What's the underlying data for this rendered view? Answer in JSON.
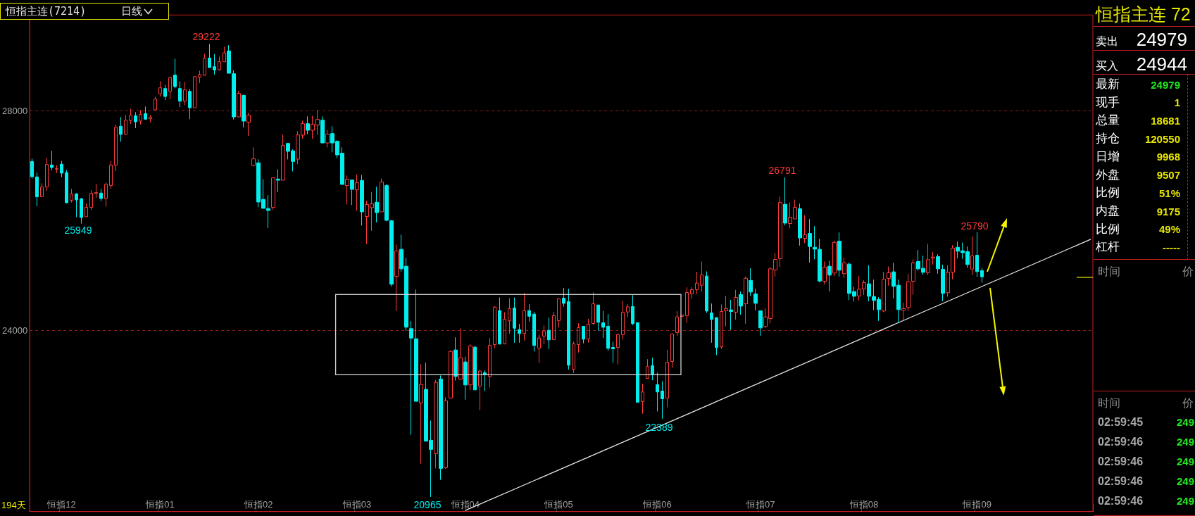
{
  "chart_data": [
    {
      "type": "candlestick",
      "title": "恒指主连(7214)",
      "subtitle": "日线",
      "categories": [
        null,
        null,
        null,
        null,
        null,
        null,
        "恒指12",
        null,
        null,
        null,
        null,
        null,
        null,
        null,
        null,
        null,
        null,
        null,
        null,
        null,
        null,
        null,
        null,
        null,
        null,
        null,
        "恒指01",
        null,
        null,
        null,
        null,
        null,
        null,
        null,
        null,
        null,
        null,
        null,
        null,
        null,
        null,
        null,
        null,
        null,
        null,
        null,
        "恒指02",
        null,
        null,
        null,
        null,
        null,
        null,
        null,
        null,
        null,
        null,
        null,
        null,
        null,
        null,
        null,
        null,
        null,
        null,
        null,
        "恒指03",
        null,
        null,
        null,
        null,
        null,
        null,
        null,
        null,
        null,
        null,
        null,
        null,
        null,
        null,
        null,
        null,
        null,
        null,
        null,
        null,
        null,
        "恒指04",
        null,
        null,
        null,
        null,
        null,
        null,
        null,
        null,
        null,
        null,
        null,
        null,
        null,
        null,
        null,
        null,
        null,
        null,
        "恒指05",
        null,
        null,
        null,
        null,
        null,
        null,
        null,
        null,
        null,
        null,
        null,
        null,
        null,
        null,
        null,
        null,
        null,
        null,
        null,
        "恒指06",
        null,
        null,
        null,
        null,
        null,
        null,
        null,
        null,
        null,
        null,
        null,
        null,
        null,
        null,
        null,
        null,
        null,
        null,
        null,
        null,
        "恒指07",
        null,
        null,
        null,
        null,
        null,
        null,
        null,
        null,
        null,
        null,
        null,
        null,
        null,
        null,
        null,
        null,
        null,
        null,
        null,
        null,
        "恒指08",
        null,
        null,
        null,
        null,
        null,
        null,
        null,
        null,
        null,
        null,
        null,
        null,
        null,
        null,
        null,
        null,
        null,
        null,
        null,
        null,
        null,
        null,
        "恒指09",
        null,
        null,
        null,
        null,
        null,
        null,
        null,
        null,
        null,
        null,
        null,
        null,
        null,
        null,
        null,
        null,
        null,
        null,
        null,
        null,
        null,
        null,
        null
      ],
      "ohlc": [
        [
          27081,
          27133,
          26770,
          26804
        ],
        [
          26799,
          26876,
          26265,
          26436
        ],
        [
          26436,
          26684,
          26436,
          26616
        ],
        [
          26616,
          27146,
          26547,
          27026
        ],
        [
          27017,
          27274,
          26919,
          26970
        ],
        [
          26940,
          27013,
          26868,
          26949
        ],
        [
          27030,
          27090,
          26795,
          26868
        ],
        [
          26876,
          26923,
          26317,
          26329
        ],
        [
          26372,
          26581,
          26334,
          26488
        ],
        [
          26488,
          26505,
          26064,
          26381
        ],
        [
          26402,
          26415,
          25949,
          26060
        ],
        [
          26073,
          26317,
          26073,
          26244
        ],
        [
          26244,
          26556,
          26193,
          26500
        ],
        [
          26496,
          26671,
          26419,
          26513
        ],
        [
          26505,
          26581,
          26355,
          26406
        ],
        [
          26406,
          26697,
          26257,
          26663
        ],
        [
          26641,
          27090,
          26586,
          27013
        ],
        [
          27013,
          27752,
          26906,
          27705
        ],
        [
          27722,
          27889,
          27440,
          27573
        ],
        [
          27573,
          27927,
          27560,
          27833
        ],
        [
          27829,
          28043,
          27765,
          27923
        ],
        [
          27914,
          27979,
          27688,
          27804
        ],
        [
          27816,
          28017,
          27752,
          27936
        ],
        [
          27953,
          28081,
          27838,
          27851
        ],
        [
          27859,
          27923,
          27795,
          27889
        ],
        [
          28022,
          28261,
          28022,
          28218
        ],
        [
          28316,
          28543,
          28265,
          28423
        ],
        [
          28410,
          28479,
          28201,
          28265
        ],
        [
          28359,
          28628,
          28214,
          28607
        ],
        [
          28654,
          28953,
          28415,
          28445
        ],
        [
          28410,
          28539,
          28073,
          28180
        ],
        [
          28180,
          28530,
          28103,
          28385
        ],
        [
          28359,
          28402,
          27851,
          28060
        ],
        [
          28060,
          28628,
          28060,
          28628
        ],
        [
          28615,
          28735,
          28509,
          28662
        ],
        [
          28650,
          29043,
          28650,
          28962
        ],
        [
          28966,
          29222,
          28791,
          28791
        ],
        [
          28808,
          29038,
          28663,
          28748
        ],
        [
          28752,
          28992,
          28735,
          28898
        ],
        [
          28898,
          29171,
          28898,
          29060
        ],
        [
          29094,
          29200,
          28688,
          28688
        ],
        [
          28680,
          28744,
          27846,
          27893
        ],
        [
          27893,
          28360,
          27893,
          28320
        ],
        [
          28286,
          28299,
          27700,
          27816
        ],
        [
          27795,
          27965,
          27547,
          27923
        ],
        [
          27008,
          27337,
          26991,
          27128
        ],
        [
          27055,
          27119,
          26248,
          26342
        ],
        [
          26389,
          26760,
          26226,
          26226
        ],
        [
          26222,
          26466,
          25867,
          26188
        ],
        [
          26243,
          26782,
          26201,
          26782
        ],
        [
          26760,
          26940,
          26521,
          26739
        ],
        [
          26739,
          27568,
          26739,
          27371
        ],
        [
          27410,
          27410,
          27119,
          27265
        ],
        [
          27273,
          27303,
          26901,
          27081
        ],
        [
          27124,
          27632,
          27030,
          27564
        ],
        [
          27560,
          27824,
          27495,
          27769
        ],
        [
          27769,
          27901,
          27581,
          27649
        ],
        [
          27649,
          27914,
          27495,
          27756
        ],
        [
          27743,
          28017,
          27568,
          27846
        ],
        [
          27833,
          27901,
          27418,
          27418
        ],
        [
          27418,
          27654,
          27337,
          27577
        ],
        [
          27589,
          27722,
          27248,
          27418
        ],
        [
          27448,
          27465,
          27145,
          27201
        ],
        [
          27231,
          27337,
          26662,
          26662
        ],
        [
          26641,
          26825,
          26299,
          26756
        ],
        [
          26743,
          26743,
          26286,
          26572
        ],
        [
          26564,
          26846,
          26184,
          26692
        ],
        [
          26735,
          26837,
          25914,
          26162
        ],
        [
          26077,
          26363,
          25573,
          26295
        ],
        [
          26239,
          26525,
          25816,
          26307
        ],
        [
          26337,
          26619,
          25970,
          26149
        ],
        [
          26162,
          26769,
          26162,
          26705
        ],
        [
          26641,
          26666,
          25991,
          26008
        ],
        [
          26000,
          26017,
          24803,
          24842
        ],
        [
          24987,
          25564,
          24355,
          25448
        ],
        [
          25479,
          25748,
          25068,
          25124
        ],
        [
          25171,
          25325,
          23996,
          24060
        ],
        [
          24034,
          24171,
          22098,
          23863
        ],
        [
          23850,
          24748,
          22709,
          22709
        ],
        [
          22679,
          23389,
          21573,
          23017
        ],
        [
          22927,
          23414,
          21983,
          21983
        ],
        [
          22000,
          22359,
          20965,
          21833
        ],
        [
          21756,
          23102,
          21487,
          23055
        ],
        [
          23115,
          23179,
          21278,
          21487
        ],
        [
          21500,
          22782,
          21479,
          22718
        ],
        [
          22769,
          23636,
          22769,
          23619
        ],
        [
          23645,
          23876,
          23089,
          23162
        ],
        [
          23111,
          24038,
          23111,
          23504
        ],
        [
          23427,
          23521,
          22739,
          23008
        ],
        [
          23008,
          23747,
          22910,
          23718
        ],
        [
          23696,
          23722,
          22910,
          22919
        ],
        [
          22987,
          23286,
          22547,
          23260
        ],
        [
          23230,
          23273,
          22897,
          23196
        ],
        [
          23162,
          23863,
          22961,
          23730
        ],
        [
          23743,
          24440,
          23679,
          24427
        ],
        [
          24363,
          24602,
          23752,
          23752
        ],
        [
          23760,
          24333,
          23747,
          24205
        ],
        [
          24175,
          24589,
          23944,
          24397
        ],
        [
          24410,
          24602,
          23777,
          24042
        ],
        [
          24017,
          24119,
          23777,
          23944
        ],
        [
          23944,
          24683,
          23816,
          24359
        ],
        [
          24363,
          24478,
          24162,
          24260
        ],
        [
          24299,
          24341,
          23615,
          23726
        ],
        [
          23679,
          23927,
          23406,
          23863
        ],
        [
          23897,
          24094,
          23752,
          23991
        ],
        [
          24004,
          24235,
          23662,
          23829
        ],
        [
          23833,
          24341,
          23833,
          24269
        ],
        [
          24179,
          24589,
          24051,
          24576
        ],
        [
          24589,
          24773,
          24436,
          24495
        ],
        [
          24525,
          24760,
          23290,
          23367
        ],
        [
          23290,
          23799,
          23226,
          23756
        ],
        [
          23743,
          24132,
          23598,
          24051
        ],
        [
          24077,
          24077,
          23765,
          23842
        ],
        [
          23846,
          24213,
          23777,
          24115
        ],
        [
          24128,
          24696,
          24102,
          24487
        ],
        [
          24465,
          24465,
          23995,
          24149
        ],
        [
          24141,
          24354,
          23863,
          24059
        ],
        [
          24077,
          24299,
          23628,
          23675
        ],
        [
          23692,
          23795,
          23410,
          23666
        ],
        [
          23692,
          23944,
          23384,
          23923
        ],
        [
          23923,
          24538,
          23833,
          24329
        ],
        [
          24337,
          24478,
          24248,
          24431
        ],
        [
          24436,
          24645,
          24098,
          24128
        ],
        [
          24141,
          24153,
          22692,
          22692
        ],
        [
          22705,
          23030,
          22483,
          22880
        ],
        [
          23128,
          23478,
          23128,
          23342
        ],
        [
          23359,
          23504,
          23094,
          23196
        ],
        [
          23013,
          23230,
          22525,
          22880
        ],
        [
          22897,
          23077,
          22389,
          22756
        ],
        [
          22769,
          23649,
          22602,
          23423
        ],
        [
          23436,
          23948,
          23320,
          23936
        ],
        [
          23961,
          24354,
          23906,
          24248
        ],
        [
          24256,
          24282,
          24256,
          24282
        ],
        [
          24269,
          24786,
          24141,
          24692
        ],
        [
          24667,
          24787,
          24582,
          24744
        ],
        [
          24744,
          25069,
          24667,
          24864
        ],
        [
          24825,
          25257,
          24718,
          25013
        ],
        [
          24992,
          25077,
          24321,
          24355
        ],
        [
          24321,
          24492,
          23778,
          24201
        ],
        [
          24235,
          24235,
          23552,
          23688
        ],
        [
          23701,
          24475,
          23667,
          24347
        ],
        [
          24359,
          24633,
          24073,
          24398
        ],
        [
          24376,
          24560,
          24009,
          24347
        ],
        [
          24334,
          24740,
          24197,
          24603
        ],
        [
          24654,
          24710,
          24287,
          24445
        ],
        [
          24487,
          24983,
          24124,
          24953
        ],
        [
          24911,
          25133,
          24633,
          24701
        ],
        [
          24667,
          24761,
          24364,
          24496
        ],
        [
          24359,
          24359,
          23906,
          24047
        ],
        [
          24073,
          24402,
          24047,
          24248
        ],
        [
          24218,
          25154,
          24129,
          25124
        ],
        [
          25103,
          25410,
          24983,
          25295
        ],
        [
          25308,
          26436,
          25158,
          26333
        ],
        [
          26299,
          26791,
          25915,
          25957
        ],
        [
          25949,
          26333,
          25863,
          26064
        ],
        [
          26034,
          26385,
          26034,
          26244
        ],
        [
          26218,
          26312,
          25547,
          25688
        ],
        [
          25680,
          26103,
          25594,
          25744
        ],
        [
          25769,
          26030,
          25240,
          25530
        ],
        [
          25517,
          25902,
          25299,
          25483
        ],
        [
          25479,
          25671,
          24876,
          24902
        ],
        [
          24898,
          25257,
          24842,
          25154
        ],
        [
          25171,
          25274,
          24714,
          25009
        ],
        [
          25047,
          25637,
          24987,
          25607
        ],
        [
          25628,
          25787,
          24983,
          25099
        ],
        [
          25035,
          25325,
          24958,
          25231
        ],
        [
          25210,
          25240,
          24556,
          24676
        ],
        [
          24710,
          24795,
          24530,
          24624
        ],
        [
          24629,
          24992,
          24547,
          24752
        ],
        [
          24757,
          24915,
          24646,
          24872
        ],
        [
          24851,
          25188,
          24530,
          24624
        ],
        [
          24620,
          24928,
          24372,
          24547
        ],
        [
          24564,
          24607,
          24176,
          24381
        ],
        [
          24355,
          25069,
          24334,
          24936
        ],
        [
          24949,
          25167,
          24817,
          25052
        ],
        [
          25069,
          25231,
          24586,
          24804
        ],
        [
          24825,
          24928,
          24141,
          24381
        ],
        [
          24372,
          24505,
          24180,
          24398
        ],
        [
          24419,
          25030,
          24355,
          24889
        ],
        [
          24898,
          25295,
          24654,
          25231
        ],
        [
          25257,
          25466,
          25090,
          25124
        ],
        [
          25133,
          25364,
          25017,
          25060
        ],
        [
          25052,
          25581,
          25009,
          25291
        ],
        [
          25321,
          25432,
          25201,
          25338
        ],
        [
          25346,
          25389,
          25035,
          25124
        ],
        [
          25116,
          25201,
          24535,
          24676
        ],
        [
          24688,
          25188,
          24616,
          25060
        ],
        [
          25060,
          25556,
          24932,
          25500
        ],
        [
          25517,
          25616,
          25316,
          25445
        ],
        [
          25453,
          25603,
          25304,
          25419
        ],
        [
          25436,
          25530,
          25141,
          25201
        ],
        [
          25120,
          25710,
          25009,
          25359
        ],
        [
          25372,
          25790,
          24975,
          25073
        ],
        [
          25090,
          25141,
          24872,
          24979
        ],
        null,
        null,
        null,
        null,
        null,
        null,
        null,
        null,
        null,
        null,
        null,
        null,
        null,
        null,
        null,
        null,
        null,
        null,
        null,
        null,
        null,
        null
      ],
      "colors": [
        "#00eeee",
        "#00eeee",
        "#ff3b3b",
        "#ff3b3b",
        "#00eeee",
        "#ff3b3b",
        "#00eeee",
        "#00eeee",
        "#ff3b3b",
        "#00eeee",
        "#00eeee",
        "#ff3b3b",
        "#ff3b3b",
        "#ff3b3b",
        "#00eeee",
        "#ff3b3b",
        "#ff3b3b",
        "#ff3b3b",
        "#00eeee",
        "#ff3b3b",
        "#ff3b3b",
        "#00eeee",
        "#ff3b3b",
        "#00eeee",
        "#ff3b3b",
        "#ff3b3b",
        "#ff3b3b",
        "#00eeee",
        "#ff3b3b",
        "#00eeee",
        "#00eeee",
        "#ff3b3b",
        "#00eeee",
        "#ff3b3b",
        "#ff3b3b",
        "#ff3b3b",
        "#00eeee",
        "#00eeee",
        "#ff3b3b",
        "#ff3b3b",
        "#00eeee",
        "#00eeee",
        "#ff3b3b",
        "#00eeee",
        "#ff3b3b",
        "#ff3b3b",
        "#00eeee",
        "#00eeee",
        "#00eeee",
        "#ff3b3b",
        "#00eeee",
        "#ff3b3b",
        "#00eeee",
        "#00eeee",
        "#ff3b3b",
        "#ff3b3b",
        "#00eeee",
        "#ff3b3b",
        "#ff3b3b",
        "#00eeee",
        "#ff3b3b",
        "#00eeee",
        "#00eeee",
        "#00eeee",
        "#ff3b3b",
        "#00eeee",
        "#ff3b3b",
        "#00eeee",
        "#ff3b3b",
        "#ff3b3b",
        "#00eeee",
        "#ff3b3b",
        "#00eeee",
        "#00eeee",
        "#ff3b3b",
        "#00eeee",
        "#00eeee",
        "#00eeee",
        "#00eeee",
        "#ff3b3b",
        "#00eeee",
        "#00eeee",
        "#ff3b3b",
        "#00eeee",
        "#ff3b3b",
        "#ff3b3b",
        "#00eeee",
        "#ff3b3b",
        "#00eeee",
        "#ff3b3b",
        "#00eeee",
        "#ff3b3b",
        "#00eeee",
        "#ff3b3b",
        "#ff3b3b",
        "#00eeee",
        "#ff3b3b",
        "#ff3b3b",
        "#00eeee",
        "#00eeee",
        "#ff3b3b",
        "#00eeee",
        "#00eeee",
        "#ff3b3b",
        "#ff3b3b",
        "#00eeee",
        "#ff3b3b",
        "#ff3b3b",
        "#00eeee",
        "#00eeee",
        "#ff3b3b",
        "#ff3b3b",
        "#00eeee",
        "#ff3b3b",
        "#ff3b3b",
        "#00eeee",
        "#00eeee",
        "#00eeee",
        "#00eeee",
        "#ff3b3b",
        "#ff3b3b",
        "#ff3b3b",
        "#00eeee",
        "#00eeee",
        "#ff3b3b",
        "#ff3b3b",
        "#00eeee",
        "#00eeee",
        "#00eeee",
        "#ff3b3b",
        "#ff3b3b",
        "#ff3b3b",
        "#ff3b3b",
        "#ff3b3b",
        "#ff3b3b",
        "#ff3b3b",
        "#ff3b3b",
        "#00eeee",
        "#00eeee",
        "#00eeee",
        "#ff3b3b",
        "#ff3b3b",
        "#00eeee",
        "#ff3b3b",
        "#00eeee",
        "#ff3b3b",
        "#00eeee",
        "#00eeee",
        "#00eeee",
        "#ff3b3b",
        "#ff3b3b",
        "#ff3b3b",
        "#ff3b3b",
        "#00eeee",
        "#ff3b3b",
        "#ff3b3b",
        "#00eeee",
        "#ff3b3b",
        "#00eeee",
        "#00eeee",
        "#00eeee",
        "#ff3b3b",
        "#00eeee",
        "#ff3b3b",
        "#00eeee",
        "#ff3b3b",
        "#00eeee",
        "#00eeee",
        "#ff3b3b",
        "#ff3b3b",
        "#00eeee",
        "#00eeee",
        "#00eeee",
        "#ff3b3b",
        "#ff3b3b",
        "#00eeee",
        "#00eeee",
        "#ff3b3b",
        "#ff3b3b",
        "#ff3b3b",
        "#00eeee",
        "#00eeee",
        "#ff3b3b",
        "#ff3b3b",
        "#00eeee",
        "#00eeee",
        "#ff3b3b",
        "#ff3b3b",
        "#00eeee",
        "#00eeee",
        "#00eeee",
        "#ff3b3b",
        "#00eeee",
        "#00eeee",
        null,
        null,
        null,
        null,
        null,
        null,
        null,
        null,
        null,
        null,
        null,
        null,
        null,
        null,
        null,
        null,
        null,
        null,
        null,
        null,
        null,
        null
      ],
      "series": [
        {
          "type": "line",
          "color": "#e4e4e4",
          "values": [
            null,
            null,
            null,
            null,
            null,
            null,
            null,
            null,
            null,
            null,
            null,
            null,
            null,
            null,
            null,
            null,
            null,
            null,
            null,
            null,
            null,
            null,
            null,
            null,
            null,
            null,
            null,
            null,
            null,
            null,
            null,
            null,
            null,
            null,
            null,
            null,
            null,
            null,
            null,
            null,
            null,
            null,
            null,
            null,
            null,
            null,
            null,
            null,
            null,
            null,
            null,
            null,
            null,
            null,
            null,
            null,
            null,
            null,
            null,
            null,
            null,
            null,
            null,
            null,
            null,
            null,
            null,
            null,
            null,
            null,
            null,
            null,
            null,
            null,
            null,
            null,
            null,
            null,
            null,
            null,
            null,
            null,
            null,
            null,
            null,
            null,
            null,
            null,
            20720,
            null,
            null,
            null,
            null,
            null,
            null,
            null,
            null,
            null,
            null,
            null,
            null,
            null,
            null,
            null,
            null,
            null,
            null,
            null,
            null,
            null,
            null,
            null,
            null,
            null,
            null,
            null,
            null,
            null,
            null,
            null,
            null,
            null,
            null,
            null,
            null,
            null,
            null,
            null,
            null,
            null,
            null,
            null,
            null,
            null,
            null,
            null,
            null,
            null,
            null,
            null,
            null,
            null,
            null,
            null,
            null,
            null,
            null,
            null,
            null,
            null,
            null,
            null,
            null,
            null,
            null,
            null,
            null,
            null,
            null,
            null,
            null,
            null,
            null,
            null,
            null,
            null,
            null,
            null,
            null,
            null,
            null,
            null,
            null,
            null,
            null,
            null,
            null,
            null,
            null,
            null,
            null,
            null,
            null,
            null,
            null,
            null,
            null,
            null,
            null,
            null,
            null,
            null,
            null,
            null,
            null,
            null,
            null,
            null,
            null,
            null,
            null,
            null,
            null,
            null,
            null,
            null,
            null,
            null,
            null,
            null,
            null,
            null,
            null,
            null,
            null,
            25660
          ]
        }
      ],
      "ylim": [
        20700,
        29750
      ],
      "yticks": [
        24000,
        28000
      ],
      "grid": "y",
      "annotations": [
        "29222",
        "25949",
        "20965",
        "22389",
        "26791",
        "25790",
        "194天"
      ]
    },
    {
      "type": "other",
      "title": "恒指主连 72",
      "categories": [
        "卖出",
        "买入",
        "最新",
        "现手",
        "总量",
        "持仓",
        "日增",
        "外盘",
        "比例",
        "内盘",
        "比例",
        "杠杆"
      ],
      "value_labels": [
        "24979",
        "24944",
        "24979",
        "1",
        "18681",
        "120550",
        "9968",
        "9507",
        "51%",
        "9175",
        "49%",
        "-----"
      ],
      "colors": [
        "#ffffff",
        "#ffffff",
        "#22e822",
        "#e8e800",
        "#e8e800",
        "#e8e800",
        "#e8e800",
        "#e8e800",
        "#e8e800",
        "#e8e800",
        "#e8e800",
        "#e8e800"
      ]
    },
    {
      "type": "other",
      "xlabel": "时间",
      "ylabel": "价"
    },
    {
      "type": "other",
      "xlabel": "时间",
      "ylabel": "价",
      "categories": [
        "02:59:45",
        "02:59:46",
        "02:59:46",
        "02:59:46",
        "02:59:46"
      ],
      "value_labels": [
        "249",
        "249",
        "249",
        "249",
        "249"
      ],
      "color": "#22e822"
    }
  ]
}
